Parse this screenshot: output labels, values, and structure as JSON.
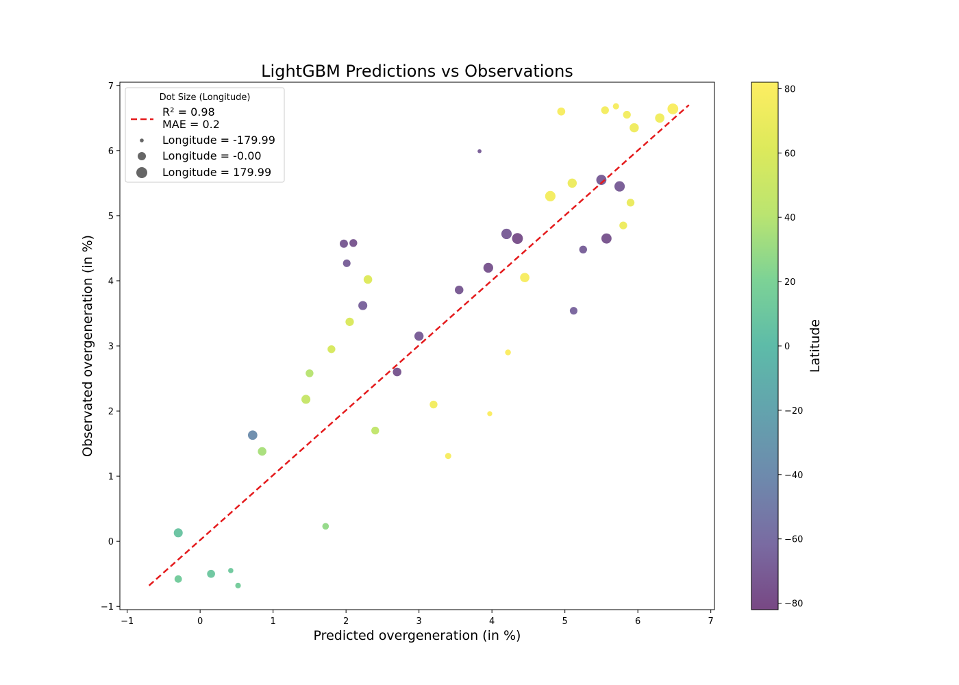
{
  "chart_data": {
    "type": "scatter",
    "title": "LightGBM Predictions vs Observations",
    "xlabel": "Predicted overgeneration (in %)",
    "ylabel": "Observated overgeneration (in %)",
    "xlim": [
      -1.1,
      7.05
    ],
    "ylim": [
      -1.05,
      7.05
    ],
    "x_ticks": [
      -1,
      0,
      1,
      2,
      3,
      4,
      5,
      6,
      7
    ],
    "y_ticks": [
      -1,
      0,
      1,
      2,
      3,
      4,
      5,
      6,
      7
    ],
    "grid": false,
    "colormap": "viridis",
    "point_alpha": 0.7,
    "color_encoding": "Latitude",
    "size_encoding": "Longitude",
    "reference_line": {
      "from": [
        -0.7,
        -0.68
      ],
      "to": [
        6.7,
        6.7
      ],
      "color": "#e41a1c",
      "style": "dashed"
    },
    "colorbar": {
      "label": "Latitude",
      "range": [
        -82,
        82
      ],
      "ticks": [
        80,
        60,
        40,
        20,
        0,
        -20,
        -40,
        -60,
        -80
      ],
      "tick_labels": [
        "80",
        "60",
        "40",
        "20",
        "0",
        "−20",
        "−40",
        "−60",
        "−80"
      ]
    },
    "legend": {
      "position": "upper-left",
      "title": "Dot Size (Longitude)",
      "line_label_1": "R² = 0.98",
      "line_label_2": "MAE = 0.2",
      "entries": [
        {
          "label": "Longitude = -179.99",
          "longitude": -179.99
        },
        {
          "label": "Longitude = -0.00",
          "longitude": 0
        },
        {
          "label": "Longitude = 179.99",
          "longitude": 179.99
        }
      ]
    },
    "points": [
      {
        "x": 3.83,
        "y": 5.99,
        "lat": -70,
        "lon": -175
      },
      {
        "x": 4.95,
        "y": 6.6,
        "lat": 78,
        "lon": 30
      },
      {
        "x": 5.55,
        "y": 6.62,
        "lat": 76,
        "lon": 20
      },
      {
        "x": 5.7,
        "y": 6.68,
        "lat": 77,
        "lon": -60
      },
      {
        "x": 6.48,
        "y": 6.64,
        "lat": 79,
        "lon": 170
      },
      {
        "x": 6.3,
        "y": 6.5,
        "lat": 74,
        "lon": 100
      },
      {
        "x": 5.85,
        "y": 6.55,
        "lat": 75,
        "lon": 20
      },
      {
        "x": 5.95,
        "y": 6.35,
        "lat": 73,
        "lon": 90
      },
      {
        "x": 5.5,
        "y": 5.55,
        "lat": -70,
        "lon": 140
      },
      {
        "x": 5.57,
        "y": 4.65,
        "lat": -75,
        "lon": 140
      },
      {
        "x": 5.25,
        "y": 4.48,
        "lat": -68,
        "lon": 20
      },
      {
        "x": 5.12,
        "y": 3.54,
        "lat": -65,
        "lon": 10
      },
      {
        "x": 5.8,
        "y": 4.85,
        "lat": 72,
        "lon": 20
      },
      {
        "x": 5.9,
        "y": 5.2,
        "lat": 70,
        "lon": 20
      },
      {
        "x": 5.75,
        "y": 5.45,
        "lat": -70,
        "lon": 150
      },
      {
        "x": 1.97,
        "y": 4.57,
        "lat": -72,
        "lon": 40
      },
      {
        "x": 2.1,
        "y": 4.58,
        "lat": -74,
        "lon": 20
      },
      {
        "x": 2.01,
        "y": 4.27,
        "lat": -68,
        "lon": 10
      },
      {
        "x": 2.3,
        "y": 4.02,
        "lat": 62,
        "lon": 60
      },
      {
        "x": 2.23,
        "y": 3.62,
        "lat": -66,
        "lon": 80
      },
      {
        "x": 2.05,
        "y": 3.37,
        "lat": 60,
        "lon": 50
      },
      {
        "x": 1.8,
        "y": 2.95,
        "lat": 58,
        "lon": 20
      },
      {
        "x": 3.97,
        "y": 1.96,
        "lat": 80,
        "lon": -120
      },
      {
        "x": 3.4,
        "y": 1.31,
        "lat": 78,
        "lon": -60
      },
      {
        "x": 1.72,
        "y": 0.23,
        "lat": 28,
        "lon": -40
      },
      {
        "x": 0.52,
        "y": -0.68,
        "lat": 15,
        "lon": -90
      },
      {
        "x": 0.15,
        "y": -0.5,
        "lat": 10,
        "lon": 30
      },
      {
        "x": -0.3,
        "y": -0.58,
        "lat": 14,
        "lon": 0
      },
      {
        "x": 0.42,
        "y": -0.45,
        "lat": 12,
        "lon": -110
      },
      {
        "x": -0.3,
        "y": 0.13,
        "lat": 8,
        "lon": 80
      },
      {
        "x": 0.85,
        "y": 1.38,
        "lat": 35,
        "lon": 60
      },
      {
        "x": 0.72,
        "y": 1.63,
        "lat": -38,
        "lon": 100
      },
      {
        "x": 1.45,
        "y": 2.18,
        "lat": 48,
        "lon": 80
      },
      {
        "x": 1.5,
        "y": 2.58,
        "lat": 40,
        "lon": 20
      },
      {
        "x": 2.4,
        "y": 1.7,
        "lat": 45,
        "lon": 20
      },
      {
        "x": 4.22,
        "y": 2.9,
        "lat": 80,
        "lon": -80
      },
      {
        "x": 3.2,
        "y": 2.1,
        "lat": 75,
        "lon": 20
      },
      {
        "x": 4.35,
        "y": 4.65,
        "lat": -78,
        "lon": 175
      },
      {
        "x": 4.2,
        "y": 4.72,
        "lat": -70,
        "lon": 150
      },
      {
        "x": 3.95,
        "y": 4.2,
        "lat": -75,
        "lon": 120
      },
      {
        "x": 3.55,
        "y": 3.86,
        "lat": -72,
        "lon": 60
      },
      {
        "x": 3.0,
        "y": 3.15,
        "lat": -70,
        "lon": 90
      },
      {
        "x": 2.7,
        "y": 2.6,
        "lat": -74,
        "lon": 60
      },
      {
        "x": 4.45,
        "y": 4.05,
        "lat": 78,
        "lon": 100
      },
      {
        "x": 4.8,
        "y": 5.3,
        "lat": 76,
        "lon": 150
      },
      {
        "x": 5.1,
        "y": 5.5,
        "lat": 72,
        "lon": 90
      }
    ]
  }
}
